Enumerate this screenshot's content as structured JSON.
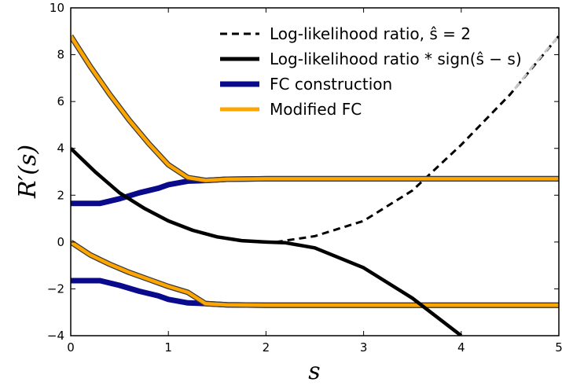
{
  "chart_data": {
    "type": "line",
    "xlabel": "s",
    "ylabel": "R′(s)",
    "xlim": [
      0,
      5
    ],
    "ylim": [
      -4,
      10
    ],
    "x_ticks": [
      "0",
      "1",
      "2",
      "3",
      "4",
      "5"
    ],
    "y_ticks": [
      "−4",
      "−2",
      "0",
      "2",
      "4",
      "6",
      "8",
      "10"
    ],
    "grid": false,
    "legend_position": "top-right",
    "legend_entries": [
      "Log-likelihood ratio, ŝ = 2",
      "Log-likelihood ratio * sign(ŝ − s)",
      "FC construction",
      "Modified FC"
    ],
    "colors": {
      "black": "#000000",
      "fc_construction": "#0a0a8c",
      "modified_fc": "#ffa500",
      "dashed_faded": "#c8c8c8"
    },
    "series": [
      {
        "name": "Log-likelihood ratio, ŝ = 2",
        "style": "dashed",
        "x": [
          2.1,
          2.5,
          3.0,
          3.5,
          4.0,
          4.5,
          5.0
        ],
        "y": [
          0.0,
          0.25,
          0.9,
          2.2,
          4.15,
          6.3,
          8.8
        ]
      },
      {
        "name": "Log-likelihood ratio * sign(ŝ − s)",
        "style": "solid",
        "x": [
          0.0,
          0.25,
          0.5,
          0.75,
          1.0,
          1.25,
          1.5,
          1.75,
          2.0,
          2.2,
          2.5,
          3.0,
          3.5,
          4.0
        ],
        "y": [
          4.0,
          3.0,
          2.1,
          1.45,
          0.9,
          0.5,
          0.22,
          0.06,
          0.0,
          -0.03,
          -0.25,
          -1.1,
          -2.4,
          -4.0
        ]
      },
      {
        "name": "FC construction",
        "style": "solid",
        "x": [
          0.0,
          0.3,
          0.5,
          0.7,
          0.9,
          1.0,
          1.2,
          1.4,
          1.6,
          2.0,
          2.5,
          3.0,
          3.5,
          4.0,
          4.5,
          5.0
        ],
        "y": [
          1.65,
          1.65,
          1.85,
          2.1,
          2.3,
          2.45,
          2.6,
          2.63,
          2.68,
          2.7,
          2.7,
          2.7,
          2.7,
          2.7,
          2.7,
          2.7
        ]
      },
      {
        "name": "FC construction lower",
        "style": "solid",
        "x": [
          0.0,
          0.3,
          0.5,
          0.7,
          0.9,
          1.0,
          1.2,
          1.4,
          1.6,
          2.0,
          2.5,
          3.0,
          3.5,
          4.0,
          4.5,
          5.0
        ],
        "y": [
          -1.65,
          -1.65,
          -1.85,
          -2.1,
          -2.3,
          -2.45,
          -2.6,
          -2.63,
          -2.68,
          -2.7,
          -2.7,
          -2.7,
          -2.7,
          -2.7,
          -2.7,
          -2.7
        ]
      },
      {
        "name": "Modified FC",
        "style": "solid",
        "x": [
          0.0,
          0.2,
          0.4,
          0.6,
          0.8,
          1.0,
          1.2,
          1.38,
          1.6,
          2.0,
          2.5,
          3.0,
          3.5,
          4.0,
          4.5,
          5.0
        ],
        "y": [
          8.8,
          7.5,
          6.3,
          5.2,
          4.2,
          3.3,
          2.75,
          2.63,
          2.68,
          2.7,
          2.7,
          2.7,
          2.7,
          2.7,
          2.7,
          2.7
        ]
      },
      {
        "name": "Modified FC lower",
        "style": "solid",
        "x": [
          0.0,
          0.2,
          0.4,
          0.6,
          0.8,
          1.0,
          1.2,
          1.38,
          1.6,
          2.0,
          2.5,
          3.0,
          3.5,
          4.0,
          4.5,
          5.0
        ],
        "y": [
          0.0,
          -0.55,
          -0.95,
          -1.3,
          -1.6,
          -1.9,
          -2.15,
          -2.63,
          -2.68,
          -2.7,
          -2.7,
          -2.7,
          -2.7,
          -2.7,
          -2.7,
          -2.7
        ]
      }
    ]
  }
}
